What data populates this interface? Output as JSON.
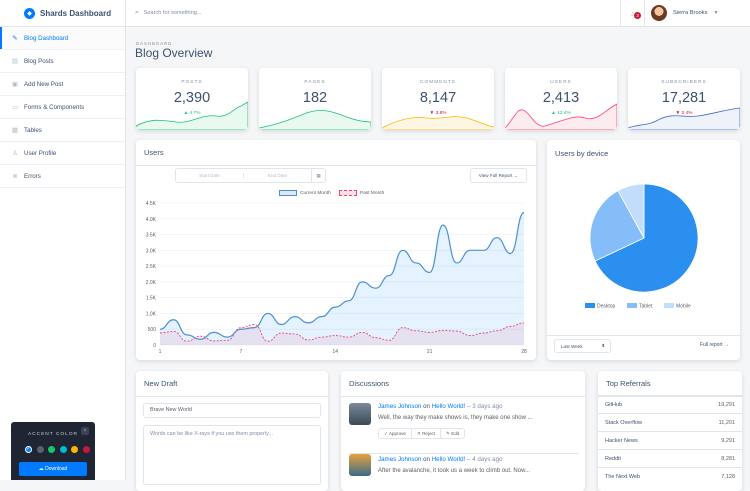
{
  "brand": {
    "name": "Shards Dashboard"
  },
  "sidebar": {
    "items": [
      {
        "label": "Blog Dashboard",
        "icon": "pencil-icon"
      },
      {
        "label": "Blog Posts",
        "icon": "document-icon"
      },
      {
        "label": "Add New Post",
        "icon": "note-icon"
      },
      {
        "label": "Forms & Components",
        "icon": "forms-icon"
      },
      {
        "label": "Tables",
        "icon": "table-icon"
      },
      {
        "label": "User Profile",
        "icon": "user-icon"
      },
      {
        "label": "Errors",
        "icon": "error-icon"
      }
    ]
  },
  "topbar": {
    "search_placeholder": "Search for something...",
    "notifications_count": "3",
    "user_name": "Sierra Brooks"
  },
  "page": {
    "subtitle": "DASHBOARD",
    "title": "Blog Overview"
  },
  "stats": [
    {
      "label": "POSTS",
      "value": "2,390",
      "change": "4.7%",
      "dir": "up",
      "color": "#17c671",
      "fill": "#eaf9f0"
    },
    {
      "label": "PAGES",
      "value": "182",
      "change": "12.4%",
      "dir": "up",
      "color": "#17c671",
      "fill": "#eaf9f0"
    },
    {
      "label": "COMMENTS",
      "value": "8,147",
      "change": "3.8%",
      "dir": "down",
      "color": "#c4183c",
      "fill": "#fdf6e3"
    },
    {
      "label": "USERS",
      "value": "2,413",
      "change": "12.4%",
      "dir": "up",
      "color": "#17c671",
      "fill": "#fdecef"
    },
    {
      "label": "SUBSCRIBERS",
      "value": "17,281",
      "change": "2.4%",
      "dir": "down",
      "color": "#c4183c",
      "fill": "#eef3fb"
    }
  ],
  "users_card": {
    "title": "Users",
    "start_placeholder": "Start Date",
    "end_placeholder": "End Date",
    "report_button": "View Full Report →"
  },
  "chart_data": [
    {
      "type": "line",
      "title": "Users",
      "x": [
        1,
        2,
        3,
        4,
        5,
        6,
        7,
        8,
        9,
        10,
        11,
        12,
        13,
        14,
        15,
        16,
        17,
        18,
        19,
        20,
        21,
        22,
        23,
        24,
        25,
        26,
        27,
        28
      ],
      "series": [
        {
          "name": "Current Month",
          "color": "#007bff",
          "values": [
            500,
            800,
            320,
            180,
            400,
            250,
            500,
            550,
            1000,
            650,
            900,
            700,
            900,
            1200,
            1400,
            2000,
            1800,
            2200,
            3000,
            2600,
            2300,
            3800,
            2600,
            3000,
            3000,
            3400,
            2900,
            4200
          ]
        },
        {
          "name": "Past Month",
          "color": "#ff4169",
          "values": [
            380,
            430,
            120,
            280,
            130,
            150,
            550,
            650,
            120,
            380,
            350,
            160,
            250,
            300,
            250,
            400,
            230,
            150,
            550,
            450,
            400,
            460,
            440,
            300,
            380,
            450,
            590,
            700
          ]
        }
      ],
      "x_ticks": [
        1,
        7,
        14,
        21,
        28
      ],
      "y_ticks": [
        "0",
        "500",
        "1.0K",
        "1.5K",
        "2.0K",
        "2.5K",
        "3.0K",
        "3.5K",
        "4.0K",
        "4.5K"
      ],
      "ylim": [
        0,
        4500
      ],
      "legend_position": "top",
      "grid": true
    },
    {
      "type": "pie",
      "title": "Users by device",
      "categories": [
        "Desktop",
        "Tablet",
        "Mobile"
      ],
      "values": [
        68,
        24,
        8
      ],
      "colors": [
        "#2b8ff0",
        "#84bdf7",
        "#c2dcfb"
      ],
      "legend_position": "bottom"
    }
  ],
  "device_card": {
    "range": "Last Week",
    "full_report": "Full report →"
  },
  "draft": {
    "title": "New Draft",
    "title_value": "Brave New World",
    "body_placeholder": "Words can be like X-rays if you use them properly..."
  },
  "discussions": {
    "title": "Discussions",
    "items": [
      {
        "author": "James Johnson",
        "on": "on",
        "post": "Hello World!",
        "ago": "– 3 days ago",
        "text": "Well, the way they make shows is, they make one show ...",
        "approve": "✓ Approve",
        "reject": "✕ Reject",
        "edit": "✎ Edit"
      },
      {
        "author": "James Johnson",
        "on": "on",
        "post": "Hello World!",
        "ago": "– 4 days ago",
        "text": "After the avalanche, it took us a week to climb out. Now..."
      }
    ]
  },
  "referrals": {
    "title": "Top Referrals",
    "rows": [
      {
        "name": "GitHub",
        "count": "19,291"
      },
      {
        "name": "Stack Overflow",
        "count": "11,201"
      },
      {
        "name": "Hacker News",
        "count": "9,291"
      },
      {
        "name": "Reddit",
        "count": "8,281"
      },
      {
        "name": "The Next Web",
        "count": "7,128"
      }
    ]
  },
  "accent": {
    "title": "ACCENT COLOR",
    "download": "Download",
    "colors": [
      "#007bff",
      "#5a6169",
      "#17c671",
      "#00b8d8",
      "#ffb400",
      "#c4183c"
    ]
  }
}
